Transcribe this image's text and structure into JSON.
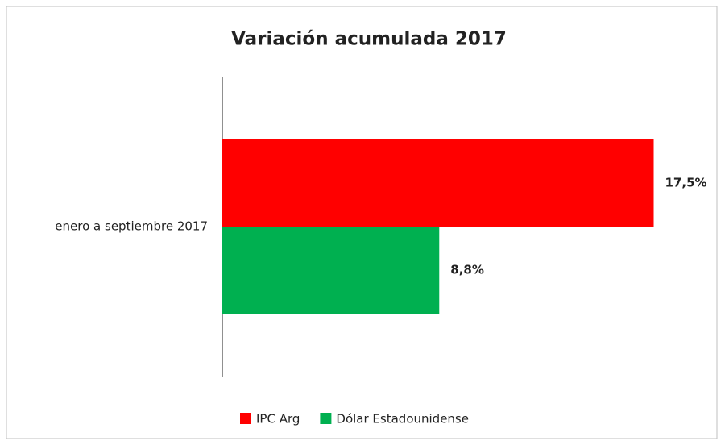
{
  "chart_data": {
    "type": "bar",
    "orientation": "horizontal",
    "title": "Variación acumulada 2017",
    "categories": [
      "enero a septiembre 2017"
    ],
    "series": [
      {
        "name": "IPC Arg",
        "color": "#ff0000",
        "values": [
          17.5
        ],
        "value_labels": [
          "17,5%"
        ]
      },
      {
        "name": "Dólar Estadounidense",
        "color": "#00b050",
        "values": [
          8.8
        ],
        "value_labels": [
          "8,8%"
        ]
      }
    ],
    "xlim": [
      0,
      20
    ],
    "legend": "bottom"
  }
}
